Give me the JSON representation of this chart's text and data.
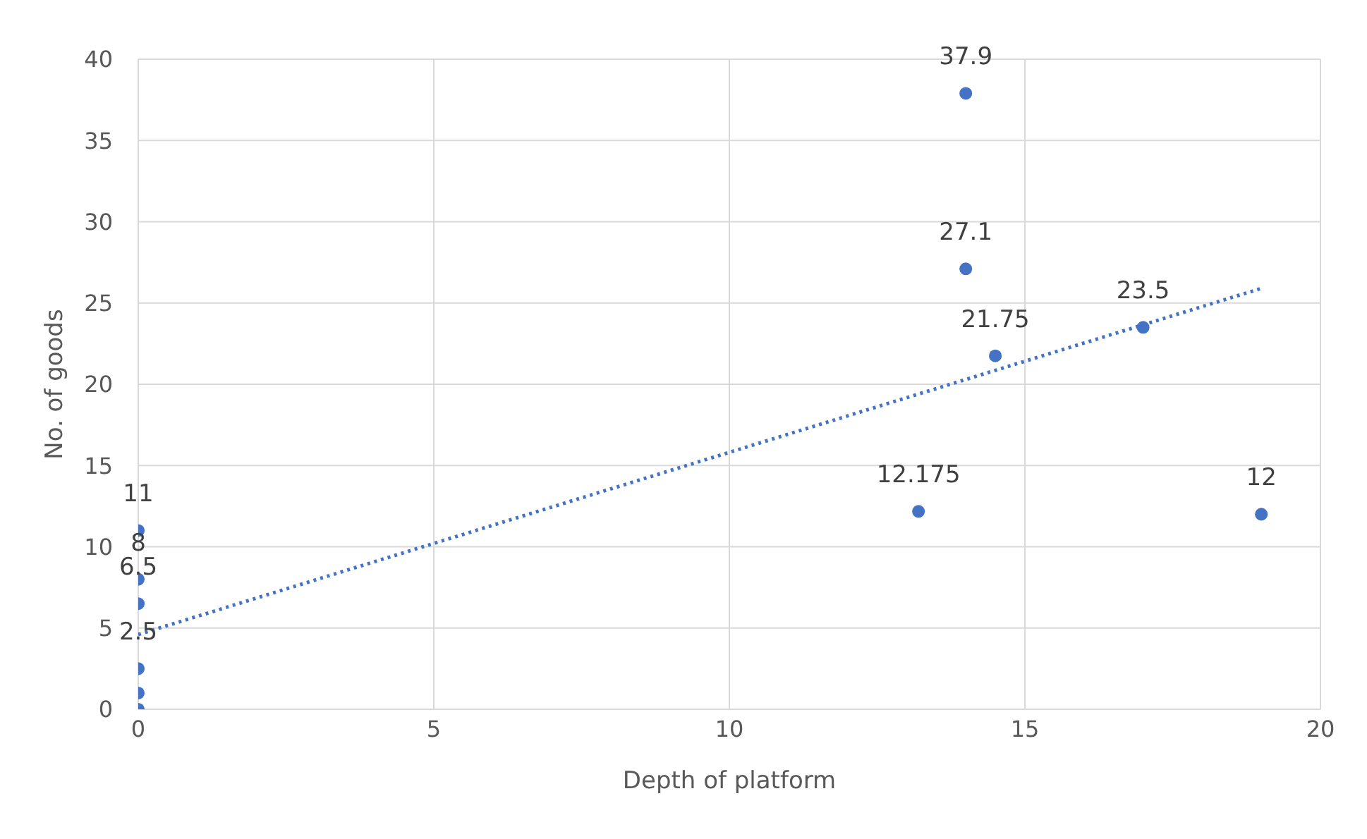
{
  "chart_data": {
    "type": "scatter",
    "xlabel": "Depth of platform",
    "ylabel": "No. of goods",
    "xlim": [
      0,
      20
    ],
    "xticks": [
      0,
      5,
      10,
      15,
      20
    ],
    "ylim": [
      0,
      40
    ],
    "yticks": [
      0,
      5,
      10,
      15,
      20,
      25,
      30,
      35,
      40
    ],
    "grid": true,
    "marker": "circle",
    "series": [
      {
        "color": "#4472c4",
        "x": [
          0,
          0,
          0,
          0,
          0,
          0,
          13.2,
          14,
          14,
          14.5,
          17,
          19
        ],
        "values": [
          11,
          8,
          6.5,
          2.5,
          1,
          0,
          12.175,
          37.9,
          27.1,
          21.75,
          23.5,
          12
        ],
        "value_labels": [
          "11",
          "8",
          "6.5",
          "2.5",
          null,
          null,
          "12.175",
          "37.9",
          "27.1",
          "21.75",
          "23.5",
          "12"
        ]
      },
      {
        "type": "line",
        "color": "#4472c4",
        "line_style": "dotted",
        "marker": "none",
        "x": [
          0,
          19
        ],
        "values": [
          4.6,
          25.9
        ]
      }
    ]
  }
}
